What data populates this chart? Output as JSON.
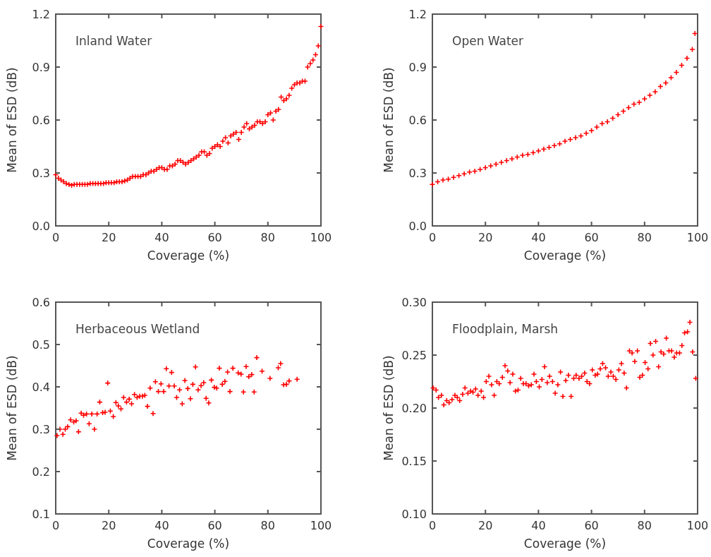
{
  "chart_data": [
    {
      "type": "scatter",
      "title": "Inland Water",
      "xlabel": "Coverage (%)",
      "ylabel": "Mean of ESD (dB)",
      "marker": "cross",
      "xlim": [
        0,
        100
      ],
      "ylim": [
        0,
        1.2
      ],
      "xticks": [
        0,
        20,
        40,
        60,
        80,
        100
      ],
      "yticks": [
        {
          "value": 0,
          "label": "0.0"
        },
        {
          "value": 0.3,
          "label": "0.3"
        },
        {
          "value": 0.6,
          "label": "0.6"
        },
        {
          "value": 0.9,
          "label": "0.9"
        },
        {
          "value": 1.2,
          "label": "1.2"
        }
      ],
      "x": [
        0,
        1,
        2,
        3,
        4,
        5,
        6,
        7,
        8,
        9,
        10,
        11,
        12,
        13,
        14,
        15,
        16,
        17,
        18,
        19,
        20,
        21,
        22,
        23,
        24,
        25,
        26,
        27,
        28,
        29,
        30,
        31,
        32,
        33,
        34,
        35,
        36,
        37,
        38,
        39,
        40,
        41,
        42,
        43,
        44,
        45,
        46,
        47,
        48,
        49,
        50,
        51,
        52,
        53,
        54,
        55,
        56,
        57,
        58,
        59,
        60,
        61,
        62,
        63,
        64,
        65,
        66,
        67,
        68,
        69,
        70,
        71,
        72,
        73,
        74,
        75,
        76,
        77,
        78,
        79,
        80,
        81,
        82,
        83,
        84,
        85,
        86,
        87,
        88,
        89,
        90,
        91,
        92,
        93,
        94,
        95,
        96,
        97,
        98,
        99,
        100
      ],
      "series": [
        {
          "color": "#ff0000",
          "values": [
            0.29,
            0.27,
            0.26,
            0.25,
            0.24,
            0.235,
            0.23,
            0.235,
            0.235,
            0.235,
            0.235,
            0.235,
            0.235,
            0.24,
            0.24,
            0.24,
            0.24,
            0.24,
            0.24,
            0.245,
            0.245,
            0.245,
            0.245,
            0.25,
            0.25,
            0.25,
            0.255,
            0.26,
            0.27,
            0.28,
            0.28,
            0.28,
            0.28,
            0.29,
            0.29,
            0.3,
            0.31,
            0.31,
            0.32,
            0.33,
            0.33,
            0.32,
            0.32,
            0.34,
            0.34,
            0.35,
            0.37,
            0.37,
            0.36,
            0.35,
            0.36,
            0.37,
            0.38,
            0.39,
            0.4,
            0.42,
            0.42,
            0.4,
            0.41,
            0.44,
            0.45,
            0.46,
            0.45,
            0.48,
            0.5,
            0.47,
            0.51,
            0.52,
            0.53,
            0.49,
            0.53,
            0.56,
            0.58,
            0.55,
            0.56,
            0.57,
            0.59,
            0.59,
            0.58,
            0.59,
            0.63,
            0.64,
            0.6,
            0.65,
            0.66,
            0.73,
            0.71,
            0.72,
            0.74,
            0.78,
            0.8,
            0.81,
            0.81,
            0.82,
            0.82,
            0.9,
            0.92,
            0.94,
            0.97,
            1.02,
            1.13
          ]
        }
      ]
    },
    {
      "type": "scatter",
      "title": "Open Water",
      "xlabel": "Coverage (%)",
      "ylabel": "Mean of ESD (dB)",
      "marker": "cross",
      "xlim": [
        0,
        100
      ],
      "ylim": [
        0,
        1.2
      ],
      "xticks": [
        0,
        20,
        40,
        60,
        80,
        100
      ],
      "yticks": [
        {
          "value": 0,
          "label": "0.0"
        },
        {
          "value": 0.3,
          "label": "0.3"
        },
        {
          "value": 0.6,
          "label": "0.6"
        },
        {
          "value": 0.9,
          "label": "0.9"
        },
        {
          "value": 1.2,
          "label": "1.2"
        }
      ],
      "x": [
        0,
        2,
        4,
        6,
        8,
        10,
        12,
        14,
        16,
        18,
        20,
        22,
        24,
        26,
        28,
        30,
        32,
        34,
        36,
        38,
        40,
        42,
        44,
        46,
        48,
        50,
        52,
        54,
        56,
        58,
        60,
        62,
        64,
        66,
        68,
        70,
        72,
        74,
        76,
        78,
        80,
        82,
        84,
        86,
        88,
        90,
        92,
        94,
        96,
        98,
        99
      ],
      "series": [
        {
          "color": "#ff0000",
          "values": [
            0.235,
            0.25,
            0.26,
            0.265,
            0.275,
            0.285,
            0.295,
            0.305,
            0.31,
            0.32,
            0.33,
            0.34,
            0.35,
            0.36,
            0.37,
            0.38,
            0.39,
            0.4,
            0.405,
            0.415,
            0.425,
            0.435,
            0.445,
            0.455,
            0.465,
            0.48,
            0.49,
            0.5,
            0.51,
            0.525,
            0.54,
            0.56,
            0.58,
            0.59,
            0.61,
            0.63,
            0.65,
            0.67,
            0.69,
            0.7,
            0.72,
            0.74,
            0.76,
            0.79,
            0.81,
            0.84,
            0.87,
            0.91,
            0.95,
            1.0,
            1.09
          ]
        }
      ]
    },
    {
      "type": "scatter",
      "title": "Herbaceous Wetland",
      "xlabel": "Coverage (%)",
      "ylabel": "Mean of ESD (dB)",
      "marker": "cross",
      "xlim": [
        0,
        100
      ],
      "ylim": [
        0.1,
        0.6
      ],
      "xticks": [
        0,
        20,
        40,
        60,
        80,
        100
      ],
      "yticks": [
        0.1,
        0.2,
        0.3,
        0.4,
        0.5,
        0.6
      ],
      "x": [
        0.5,
        1.6,
        2.7,
        3.6,
        4.5,
        5.6,
        6.8,
        7.7,
        8.6,
        9.6,
        10.5,
        11.6,
        12.6,
        13.6,
        14.6,
        15.6,
        16.6,
        17.7,
        18.6,
        19.6,
        20.6,
        21.7,
        22.7,
        23.6,
        24.6,
        25.6,
        26.7,
        27.7,
        28.6,
        29.7,
        30.7,
        31.7,
        32.7,
        33.6,
        34.6,
        35.6,
        36.7,
        37.6,
        38.7,
        39.7,
        40.7,
        41.7,
        42.7,
        43.7,
        44.7,
        45.6,
        46.7,
        47.7,
        48.7,
        49.8,
        50.8,
        51.7,
        52.7,
        53.7,
        54.8,
        55.8,
        56.7,
        57.7,
        58.7,
        59.8,
        60.7,
        61.7,
        62.8,
        63.8,
        64.8,
        65.7,
        66.8,
        68.8,
        69.9,
        70.8,
        71.8,
        72.8,
        73.9,
        74.8,
        75.8,
        77.8,
        80.8,
        83.9,
        84.8,
        85.9,
        87,
        88,
        91
      ],
      "series": [
        {
          "color": "#ff0000",
          "values": [
            0.285,
            0.3,
            0.288,
            0.3,
            0.306,
            0.322,
            0.317,
            0.32,
            0.294,
            0.338,
            0.333,
            0.336,
            0.313,
            0.336,
            0.3,
            0.336,
            0.364,
            0.339,
            0.34,
            0.409,
            0.343,
            0.33,
            0.363,
            0.355,
            0.348,
            0.375,
            0.364,
            0.371,
            0.36,
            0.382,
            0.375,
            0.378,
            0.378,
            0.38,
            0.354,
            0.397,
            0.337,
            0.412,
            0.389,
            0.407,
            0.389,
            0.443,
            0.402,
            0.434,
            0.402,
            0.375,
            0.393,
            0.36,
            0.415,
            0.396,
            0.372,
            0.406,
            0.447,
            0.393,
            0.403,
            0.41,
            0.373,
            0.362,
            0.416,
            0.399,
            0.397,
            0.444,
            0.406,
            0.413,
            0.435,
            0.389,
            0.444,
            0.433,
            0.43,
            0.388,
            0.448,
            0.424,
            0.429,
            0.388,
            0.469,
            0.437,
            0.42,
            0.445,
            0.455,
            0.405,
            0.406,
            0.414,
            0.418
          ]
        }
      ]
    },
    {
      "type": "scatter",
      "title": "Floodplain, Marsh",
      "xlabel": "Coverage (%)",
      "ylabel": "Mean of ESD (dB)",
      "marker": "cross",
      "xlim": [
        0,
        100
      ],
      "ylim": [
        0.1,
        0.3
      ],
      "xticks": [
        0,
        20,
        40,
        60,
        80,
        100
      ],
      "yticks": [
        {
          "value": 0.1,
          "label": "0.10"
        },
        {
          "value": 0.15,
          "label": "0.15"
        },
        {
          "value": 0.2,
          "label": "0.20"
        },
        {
          "value": 0.25,
          "label": "0.25"
        },
        {
          "value": 0.3,
          "label": "0.30"
        }
      ],
      "x": [
        0.3,
        1.4,
        2.3,
        3.4,
        4.3,
        5.4,
        6.3,
        7.4,
        8.5,
        9.4,
        10.3,
        11.4,
        12.3,
        13.4,
        14.4,
        15.3,
        16.3,
        17.2,
        18.4,
        19.3,
        20.3,
        21.3,
        22.3,
        23.3,
        24.3,
        25.2,
        26.4,
        27.4,
        28.4,
        29.3,
        30.3,
        31.3,
        32.3,
        33.3,
        34.3,
        35.3,
        36.3,
        37.3,
        38.3,
        39.2,
        40.3,
        41.3,
        42.3,
        43.3,
        44.2,
        45.3,
        46.3,
        47.3,
        48.3,
        49.2,
        50.3,
        51.3,
        52.3,
        53.3,
        54.2,
        55.3,
        56.3,
        57.4,
        58.3,
        59.3,
        60.3,
        61.4,
        62.3,
        63.3,
        64.2,
        65.3,
        66.3,
        67.3,
        68.2,
        69.2,
        70.3,
        71.3,
        72.3,
        73.2,
        74.3,
        75.3,
        76.3,
        77.3,
        78.2,
        79.2,
        80.2,
        81.3,
        82.2,
        83.2,
        84.2,
        85.3,
        86.2,
        87.2,
        88.2,
        89.2,
        90.2,
        91.2,
        92.1,
        93.2,
        94.1,
        95.1,
        96.2,
        97.1,
        98.1,
        99.3
      ],
      "series": [
        {
          "color": "#ff0000",
          "values": [
            0.219,
            0.217,
            0.21,
            0.212,
            0.203,
            0.207,
            0.205,
            0.208,
            0.212,
            0.21,
            0.207,
            0.213,
            0.219,
            0.214,
            0.216,
            0.215,
            0.218,
            0.212,
            0.216,
            0.21,
            0.225,
            0.23,
            0.222,
            0.212,
            0.225,
            0.223,
            0.229,
            0.24,
            0.235,
            0.224,
            0.232,
            0.216,
            0.217,
            0.228,
            0.223,
            0.223,
            0.221,
            0.222,
            0.232,
            0.225,
            0.22,
            0.227,
            0.239,
            0.224,
            0.23,
            0.225,
            0.214,
            0.222,
            0.234,
            0.211,
            0.226,
            0.231,
            0.211,
            0.228,
            0.231,
            0.228,
            0.23,
            0.233,
            0.225,
            0.223,
            0.236,
            0.231,
            0.232,
            0.237,
            0.242,
            0.238,
            0.23,
            0.234,
            0.23,
            0.227,
            0.236,
            0.242,
            0.233,
            0.219,
            0.254,
            0.252,
            0.244,
            0.254,
            0.229,
            0.231,
            0.243,
            0.237,
            0.261,
            0.25,
            0.263,
            0.239,
            0.253,
            0.251,
            0.266,
            0.254,
            0.254,
            0.248,
            0.252,
            0.252,
            0.259,
            0.271,
            0.272,
            0.281,
            0.253,
            0.228
          ]
        }
      ]
    }
  ]
}
